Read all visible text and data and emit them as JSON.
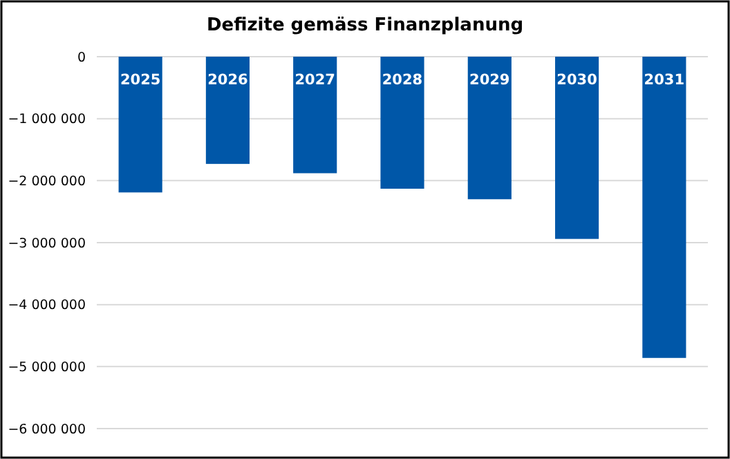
{
  "chart_data": {
    "type": "bar",
    "title": "Defizite gemäss Finanzplanung",
    "categories": [
      "2025",
      "2026",
      "2027",
      "2028",
      "2029",
      "2030",
      "2031"
    ],
    "values": [
      -2190000,
      -1730000,
      -1880000,
      -2130000,
      -2300000,
      -2940000,
      -4860000
    ],
    "color": "#0057a8",
    "ylim": [
      -6000000,
      0
    ],
    "yticks": [
      {
        "value": -6000000,
        "label": "−6 000 000"
      },
      {
        "value": -5000000,
        "label": "−5 000 000"
      },
      {
        "value": -4000000,
        "label": "−4 000 000"
      },
      {
        "value": -3000000,
        "label": "−3 000 000"
      },
      {
        "value": -2000000,
        "label": "−2 000 000"
      },
      {
        "value": -1000000,
        "label": "−1 000 000"
      },
      0
    ],
    "grid": "y"
  }
}
